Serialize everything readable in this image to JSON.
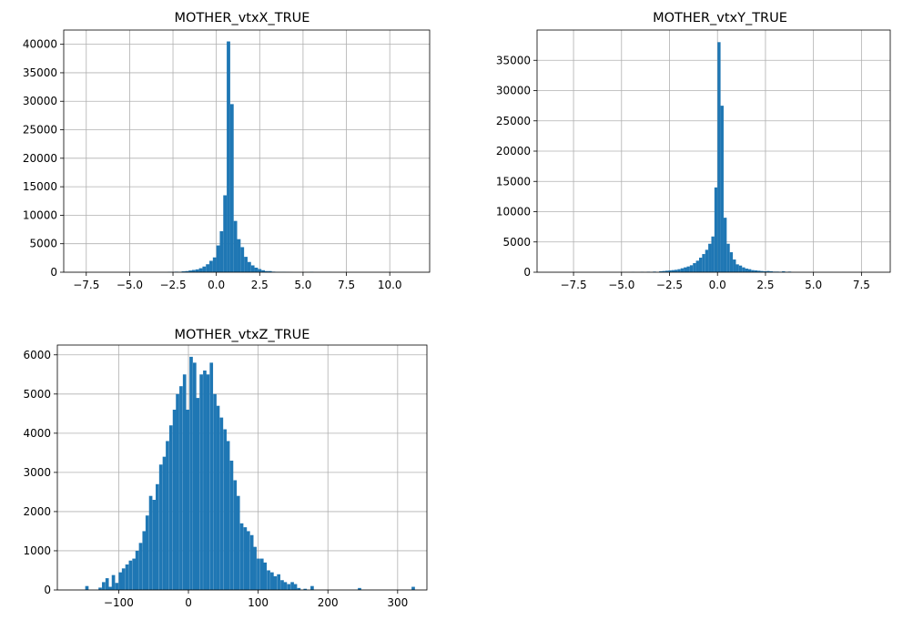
{
  "colors": {
    "bar": "#1f77b4",
    "grid": "#b0b0b0",
    "frame": "#000000"
  },
  "chart_data": [
    {
      "type": "bar",
      "title": "MOTHER_vtxX_TRUE",
      "xlabel": "",
      "ylabel": "",
      "xlim": [
        -8.8,
        12.3
      ],
      "ylim": [
        0,
        42500
      ],
      "grid": true,
      "xticks": [
        {
          "value": -7.5,
          "label": "−7.5"
        },
        {
          "value": -5.0,
          "label": "−5.0"
        },
        {
          "value": -2.5,
          "label": "−2.5"
        },
        {
          "value": 0.0,
          "label": "0.0"
        },
        {
          "value": 2.5,
          "label": "2.5"
        },
        {
          "value": 5.0,
          "label": "5.0"
        },
        {
          "value": 7.5,
          "label": "7.5"
        },
        {
          "value": 10.0,
          "label": "10.0"
        }
      ],
      "yticks": [
        {
          "value": 0,
          "label": "0"
        },
        {
          "value": 5000,
          "label": "5000"
        },
        {
          "value": 10000,
          "label": "10000"
        },
        {
          "value": 15000,
          "label": "15000"
        },
        {
          "value": 20000,
          "label": "20000"
        },
        {
          "value": 25000,
          "label": "25000"
        },
        {
          "value": 30000,
          "label": "30000"
        },
        {
          "value": 35000,
          "label": "35000"
        },
        {
          "value": 40000,
          "label": "40000"
        }
      ],
      "bin_width": 0.2,
      "bins": [
        {
          "x0": -2.8,
          "count": 50
        },
        {
          "x0": -2.6,
          "count": 40
        },
        {
          "x0": -2.4,
          "count": 90
        },
        {
          "x0": -2.2,
          "count": 60
        },
        {
          "x0": -2.0,
          "count": 150
        },
        {
          "x0": -1.8,
          "count": 200
        },
        {
          "x0": -1.6,
          "count": 300
        },
        {
          "x0": -1.4,
          "count": 400
        },
        {
          "x0": -1.2,
          "count": 500
        },
        {
          "x0": -1.0,
          "count": 700
        },
        {
          "x0": -0.8,
          "count": 1000
        },
        {
          "x0": -0.6,
          "count": 1400
        },
        {
          "x0": -0.4,
          "count": 2000
        },
        {
          "x0": -0.2,
          "count": 2600
        },
        {
          "x0": 0.0,
          "count": 4700
        },
        {
          "x0": 0.2,
          "count": 7200
        },
        {
          "x0": 0.4,
          "count": 13500
        },
        {
          "x0": 0.6,
          "count": 40500
        },
        {
          "x0": 0.8,
          "count": 29500
        },
        {
          "x0": 1.0,
          "count": 9000
        },
        {
          "x0": 1.2,
          "count": 5800
        },
        {
          "x0": 1.4,
          "count": 4400
        },
        {
          "x0": 1.6,
          "count": 2700
        },
        {
          "x0": 1.8,
          "count": 1800
        },
        {
          "x0": 2.0,
          "count": 1200
        },
        {
          "x0": 2.2,
          "count": 800
        },
        {
          "x0": 2.4,
          "count": 550
        },
        {
          "x0": 2.6,
          "count": 350
        },
        {
          "x0": 2.8,
          "count": 200
        },
        {
          "x0": 3.0,
          "count": 200
        },
        {
          "x0": 3.2,
          "count": 100
        },
        {
          "x0": 3.4,
          "count": 60
        },
        {
          "x0": 3.6,
          "count": 50
        },
        {
          "x0": 3.8,
          "count": 60
        },
        {
          "x0": 4.0,
          "count": 30
        },
        {
          "x0": 4.2,
          "count": 20
        },
        {
          "x0": 5.4,
          "count": 60
        }
      ]
    },
    {
      "type": "bar",
      "title": "MOTHER_vtxY_TRUE",
      "xlabel": "",
      "ylabel": "",
      "xlim": [
        -9.4,
        9.0
      ],
      "ylim": [
        0,
        40000
      ],
      "grid": true,
      "xticks": [
        {
          "value": -7.5,
          "label": "−7.5"
        },
        {
          "value": -5.0,
          "label": "−5.0"
        },
        {
          "value": -2.5,
          "label": "−2.5"
        },
        {
          "value": 0.0,
          "label": "0.0"
        },
        {
          "value": 2.5,
          "label": "2.5"
        },
        {
          "value": 5.0,
          "label": "5.0"
        },
        {
          "value": 7.5,
          "label": "7.5"
        }
      ],
      "yticks": [
        {
          "value": 0,
          "label": "0"
        },
        {
          "value": 5000,
          "label": "5000"
        },
        {
          "value": 10000,
          "label": "10000"
        },
        {
          "value": 15000,
          "label": "15000"
        },
        {
          "value": 20000,
          "label": "20000"
        },
        {
          "value": 25000,
          "label": "25000"
        },
        {
          "value": 30000,
          "label": "30000"
        },
        {
          "value": 35000,
          "label": "35000"
        }
      ],
      "bin_width": 0.16,
      "bins": [
        {
          "x0": -4.48,
          "count": 30
        },
        {
          "x0": -4.0,
          "count": 60
        },
        {
          "x0": -3.68,
          "count": 80
        },
        {
          "x0": -3.36,
          "count": 100
        },
        {
          "x0": -3.04,
          "count": 150
        },
        {
          "x0": -2.88,
          "count": 200
        },
        {
          "x0": -2.72,
          "count": 250
        },
        {
          "x0": -2.56,
          "count": 300
        },
        {
          "x0": -2.4,
          "count": 350
        },
        {
          "x0": -2.24,
          "count": 400
        },
        {
          "x0": -2.08,
          "count": 500
        },
        {
          "x0": -1.92,
          "count": 650
        },
        {
          "x0": -1.76,
          "count": 800
        },
        {
          "x0": -1.6,
          "count": 950
        },
        {
          "x0": -1.44,
          "count": 1150
        },
        {
          "x0": -1.28,
          "count": 1500
        },
        {
          "x0": -1.12,
          "count": 1900
        },
        {
          "x0": -0.96,
          "count": 2400
        },
        {
          "x0": -0.8,
          "count": 3000
        },
        {
          "x0": -0.64,
          "count": 3700
        },
        {
          "x0": -0.48,
          "count": 4700
        },
        {
          "x0": -0.32,
          "count": 5900
        },
        {
          "x0": -0.16,
          "count": 14000
        },
        {
          "x0": 0.0,
          "count": 38000
        },
        {
          "x0": 0.16,
          "count": 27500
        },
        {
          "x0": 0.32,
          "count": 9000
        },
        {
          "x0": 0.48,
          "count": 4700
        },
        {
          "x0": 0.64,
          "count": 3300
        },
        {
          "x0": 0.8,
          "count": 2100
        },
        {
          "x0": 0.96,
          "count": 1300
        },
        {
          "x0": 1.12,
          "count": 1100
        },
        {
          "x0": 1.28,
          "count": 800
        },
        {
          "x0": 1.44,
          "count": 600
        },
        {
          "x0": 1.6,
          "count": 500
        },
        {
          "x0": 1.76,
          "count": 350
        },
        {
          "x0": 1.92,
          "count": 300
        },
        {
          "x0": 2.08,
          "count": 250
        },
        {
          "x0": 2.24,
          "count": 200
        },
        {
          "x0": 2.4,
          "count": 150
        },
        {
          "x0": 2.56,
          "count": 200
        },
        {
          "x0": 2.72,
          "count": 150
        },
        {
          "x0": 2.88,
          "count": 100
        },
        {
          "x0": 3.04,
          "count": 100
        },
        {
          "x0": 3.2,
          "count": 80
        },
        {
          "x0": 3.36,
          "count": 150
        },
        {
          "x0": 3.52,
          "count": 60
        },
        {
          "x0": 3.68,
          "count": 100
        }
      ]
    },
    {
      "type": "bar",
      "title": "MOTHER_vtxZ_TRUE",
      "xlabel": "",
      "ylabel": "",
      "xlim": [
        -188,
        342
      ],
      "ylim": [
        0,
        6250
      ],
      "grid": true,
      "xticks": [
        {
          "value": -100,
          "label": "−100"
        },
        {
          "value": 0,
          "label": "0"
        },
        {
          "value": 100,
          "label": "100"
        },
        {
          "value": 200,
          "label": "200"
        },
        {
          "value": 300,
          "label": "300"
        }
      ],
      "yticks": [
        {
          "value": 0,
          "label": "0"
        },
        {
          "value": 1000,
          "label": "1000"
        },
        {
          "value": 2000,
          "label": "2000"
        },
        {
          "value": 3000,
          "label": "3000"
        },
        {
          "value": 4000,
          "label": "4000"
        },
        {
          "value": 5000,
          "label": "5000"
        },
        {
          "value": 6000,
          "label": "6000"
        }
      ],
      "bin_width": 4.8,
      "bins": [
        {
          "x0": -148.0,
          "count": 100
        },
        {
          "x0": -129.0,
          "count": 60
        },
        {
          "x0": -124.0,
          "count": 200
        },
        {
          "x0": -119.0,
          "count": 300
        },
        {
          "x0": -114.5,
          "count": 80
        },
        {
          "x0": -110.0,
          "count": 380
        },
        {
          "x0": -105.0,
          "count": 180
        },
        {
          "x0": -100.0,
          "count": 450
        },
        {
          "x0": -95.5,
          "count": 550
        },
        {
          "x0": -90.5,
          "count": 650
        },
        {
          "x0": -85.5,
          "count": 750
        },
        {
          "x0": -80.5,
          "count": 800
        },
        {
          "x0": -76.0,
          "count": 1000
        },
        {
          "x0": -71.0,
          "count": 1200
        },
        {
          "x0": -66.0,
          "count": 1500
        },
        {
          "x0": -61.5,
          "count": 1900
        },
        {
          "x0": -56.5,
          "count": 2400
        },
        {
          "x0": -51.5,
          "count": 2300
        },
        {
          "x0": -47.0,
          "count": 2700
        },
        {
          "x0": -42.0,
          "count": 3200
        },
        {
          "x0": -37.0,
          "count": 3400
        },
        {
          "x0": -32.5,
          "count": 3800
        },
        {
          "x0": -27.5,
          "count": 4200
        },
        {
          "x0": -22.5,
          "count": 4600
        },
        {
          "x0": -18.0,
          "count": 5000
        },
        {
          "x0": -13.0,
          "count": 5200
        },
        {
          "x0": -8.0,
          "count": 5500
        },
        {
          "x0": -3.5,
          "count": 4600
        },
        {
          "x0": 1.5,
          "count": 5950
        },
        {
          "x0": 6.5,
          "count": 5800
        },
        {
          "x0": 11.0,
          "count": 4900
        },
        {
          "x0": 16.0,
          "count": 5500
        },
        {
          "x0": 21.0,
          "count": 5600
        },
        {
          "x0": 25.5,
          "count": 5500
        },
        {
          "x0": 30.5,
          "count": 5800
        },
        {
          "x0": 35.5,
          "count": 5000
        },
        {
          "x0": 40.0,
          "count": 4700
        },
        {
          "x0": 45.0,
          "count": 4400
        },
        {
          "x0": 50.0,
          "count": 4100
        },
        {
          "x0": 54.5,
          "count": 3800
        },
        {
          "x0": 59.5,
          "count": 3300
        },
        {
          "x0": 64.5,
          "count": 2800
        },
        {
          "x0": 69.0,
          "count": 2400
        },
        {
          "x0": 74.0,
          "count": 1700
        },
        {
          "x0": 79.0,
          "count": 1600
        },
        {
          "x0": 83.5,
          "count": 1500
        },
        {
          "x0": 88.5,
          "count": 1400
        },
        {
          "x0": 93.0,
          "count": 1100
        },
        {
          "x0": 98.0,
          "count": 800
        },
        {
          "x0": 103.0,
          "count": 800
        },
        {
          "x0": 107.5,
          "count": 700
        },
        {
          "x0": 112.5,
          "count": 500
        },
        {
          "x0": 117.5,
          "count": 450
        },
        {
          "x0": 122.0,
          "count": 350
        },
        {
          "x0": 127.0,
          "count": 400
        },
        {
          "x0": 132.0,
          "count": 250
        },
        {
          "x0": 136.5,
          "count": 200
        },
        {
          "x0": 141.5,
          "count": 150
        },
        {
          "x0": 146.5,
          "count": 200
        },
        {
          "x0": 151.0,
          "count": 150
        },
        {
          "x0": 156.0,
          "count": 50
        },
        {
          "x0": 165.0,
          "count": 30
        },
        {
          "x0": 175.0,
          "count": 100
        },
        {
          "x0": 243.0,
          "count": 50
        },
        {
          "x0": 320.0,
          "count": 80
        }
      ]
    }
  ]
}
